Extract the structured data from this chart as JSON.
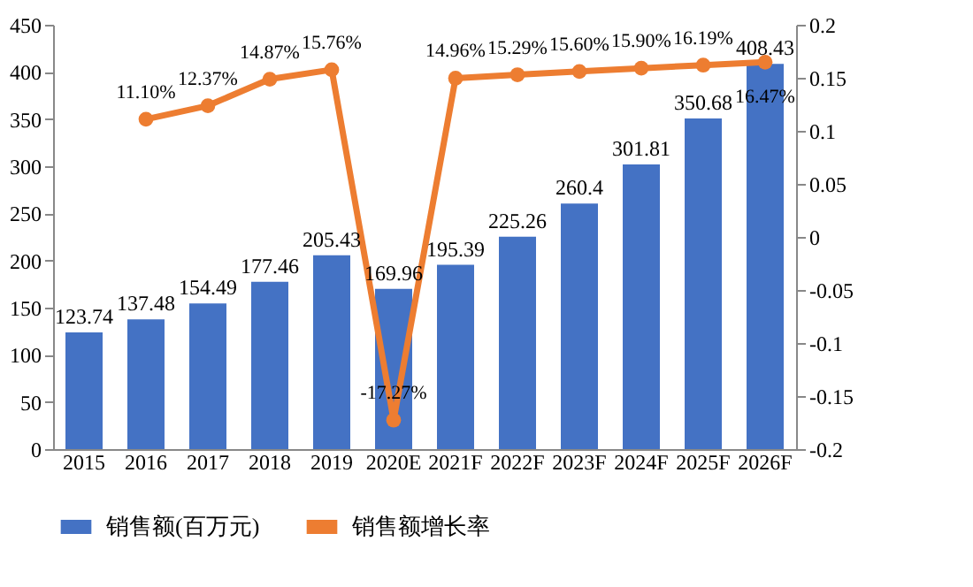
{
  "chart_data": {
    "type": "bar",
    "categories": [
      "2015",
      "2016",
      "2017",
      "2018",
      "2019",
      "2020E",
      "2021F",
      "2022F",
      "2023F",
      "2024F",
      "2025F",
      "2026F"
    ],
    "series": [
      {
        "name": "销售额(百万元)",
        "color": "#4472c4",
        "values": [
          123.74,
          137.48,
          154.49,
          177.46,
          205.43,
          169.96,
          195.39,
          225.26,
          260.4,
          301.81,
          350.68,
          408.43
        ],
        "value_labels": [
          "123.74",
          "137.48",
          "154.49",
          "177.46",
          "205.43",
          "169.96",
          "195.39",
          "225.26",
          "260.4",
          "301.81",
          "350.68",
          "408.43"
        ]
      },
      {
        "name": "销售额增长率",
        "type": "line",
        "axis": "y2",
        "color": "#ed7d31",
        "marker": "circle",
        "values": [
          null,
          0.111,
          0.1237,
          0.1487,
          0.1576,
          -0.1727,
          0.1496,
          0.1529,
          0.156,
          0.159,
          0.1619,
          0.1647
        ],
        "value_labels": [
          null,
          "11.10%",
          "12.37%",
          "14.87%",
          "15.76%",
          "-17.27%",
          "14.96%",
          "15.29%",
          "15.60%",
          "15.90%",
          "16.19%",
          "16.47%"
        ]
      }
    ],
    "ylim": [
      0,
      450
    ],
    "yticks": [
      0,
      50,
      100,
      150,
      200,
      250,
      300,
      350,
      400,
      450
    ],
    "y2lim": [
      -0.2,
      0.2
    ],
    "y2ticks": [
      -0.2,
      -0.15,
      -0.1,
      -0.05,
      0,
      0.05,
      0.1,
      0.15,
      0.2
    ],
    "grid": false,
    "legend": "bottom"
  }
}
